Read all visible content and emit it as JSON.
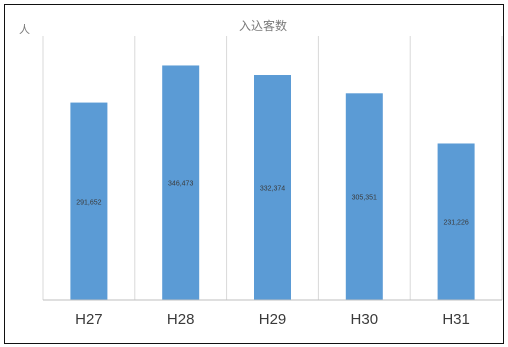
{
  "chart_data": {
    "type": "bar",
    "title": "入込客数",
    "ylabel": "人",
    "categories": [
      "H27",
      "H28",
      "H29",
      "H30",
      "H31"
    ],
    "values": [
      291652,
      346473,
      332374,
      305351,
      231226
    ],
    "value_labels": [
      "291,652",
      "346,473",
      "332,374",
      "305,351",
      "231,226"
    ],
    "ylim": [
      0,
      390000
    ],
    "grid": "vertical separators between categories",
    "legend": "none",
    "colors": {
      "bar": "#5b9bd5",
      "separator": "#d9d9d9",
      "axis": "#bfbfbf",
      "text": "#3a3a3a",
      "title": "#7a7a7a"
    }
  }
}
